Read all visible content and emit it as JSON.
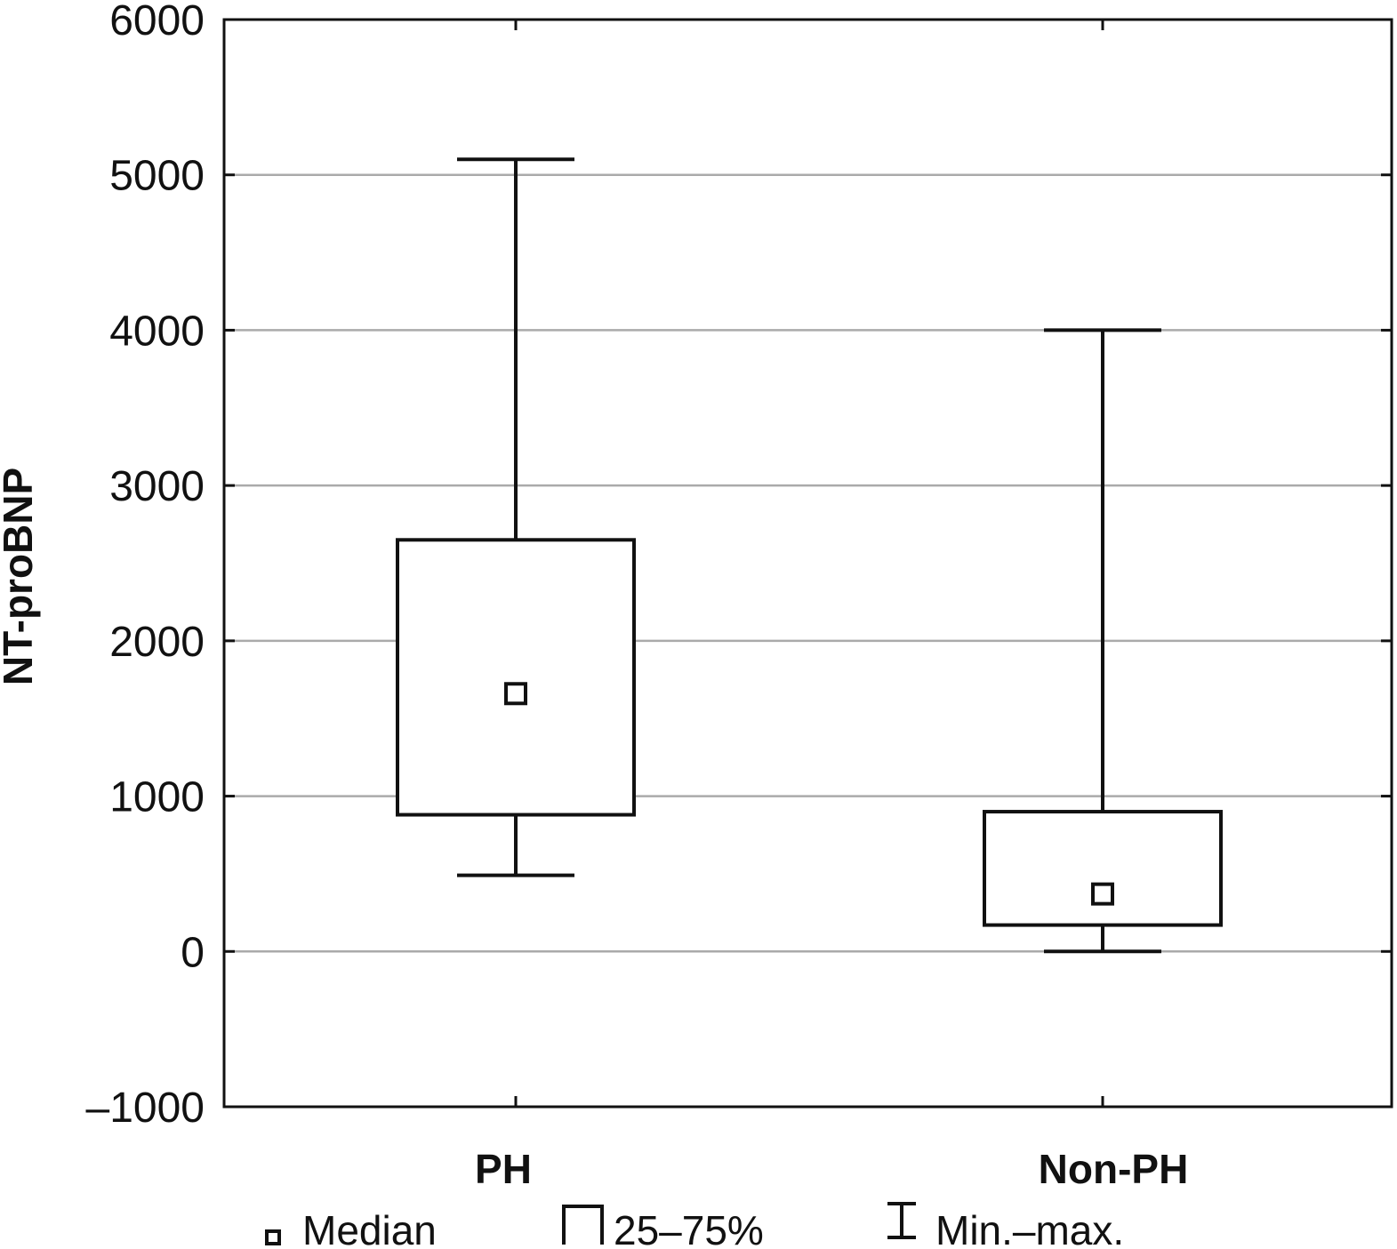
{
  "chart_data": {
    "type": "boxplot",
    "ylabel": "NT-proBNP",
    "xlabel": "",
    "ylim": [
      -1000,
      6000
    ],
    "yticks": [
      6000,
      5000,
      4000,
      3000,
      2000,
      1000,
      0,
      -1000
    ],
    "ytick_labels": [
      "6000",
      "5000",
      "4000",
      "3000",
      "2000",
      "1000",
      "0",
      "–1000"
    ],
    "grid": true,
    "categories": [
      "PH",
      "Non-PH"
    ],
    "series": [
      {
        "category": "PH",
        "min": 490,
        "q1": 880,
        "median": 1660,
        "q3": 2650,
        "max": 5100
      },
      {
        "category": "Non-PH",
        "min": 0,
        "q1": 170,
        "median": 370,
        "q3": 900,
        "max": 4000
      }
    ],
    "legend": {
      "placement": "bottom",
      "items": [
        {
          "icon": "median-square-icon",
          "label": "Median"
        },
        {
          "icon": "box-icon",
          "label": "25–75%"
        },
        {
          "icon": "whisker-icon",
          "label": "Min.–max."
        }
      ]
    },
    "colors": {
      "stroke": "#111111",
      "grid": "#aaaaaa",
      "box_fill": "#ffffff"
    }
  }
}
